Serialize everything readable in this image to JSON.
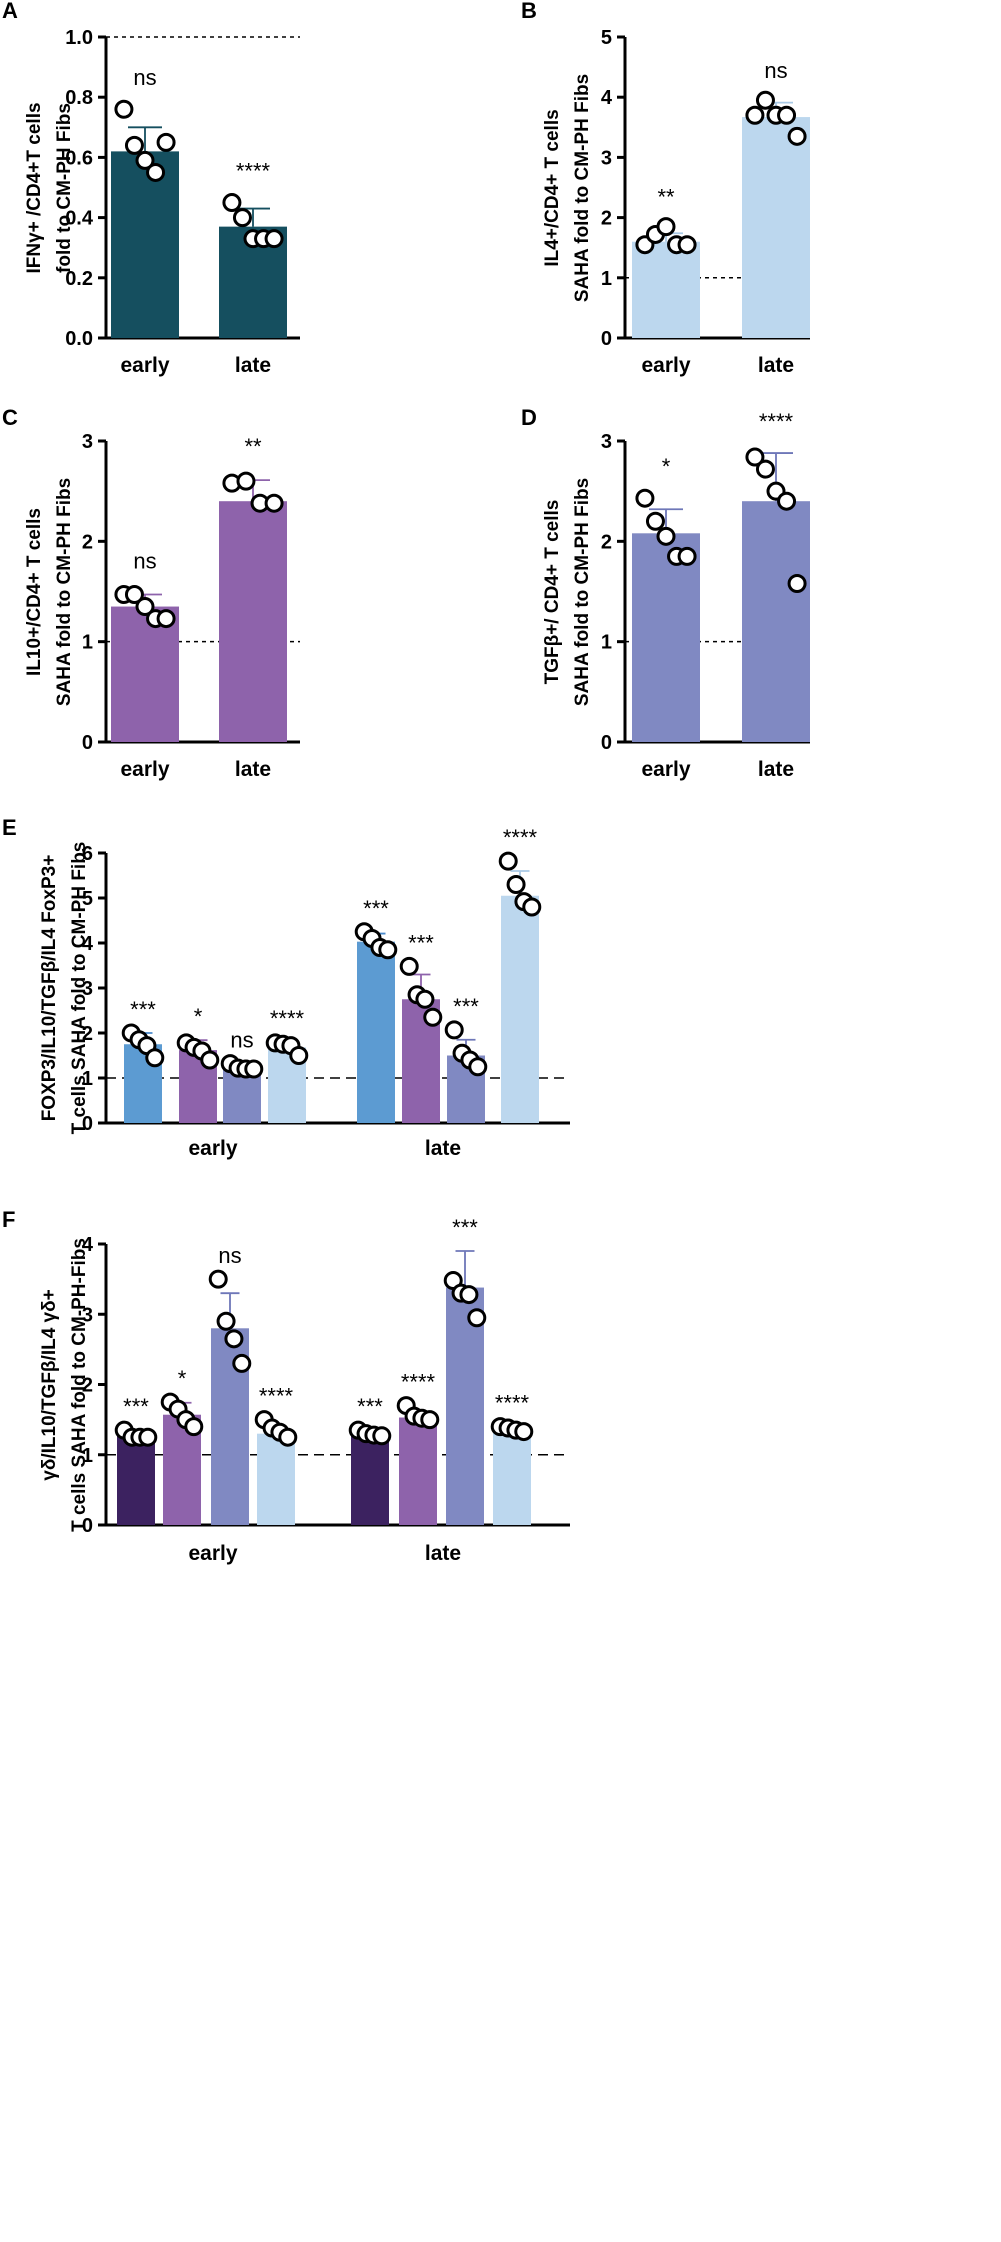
{
  "figure": {
    "colors": {
      "teal": "#154f5f",
      "light_blue": "#bcd7ee",
      "purple": "#8e63ab",
      "periwinkle": "#8089c2",
      "mid_blue": "#5c9bd2",
      "dark_purple": "#3c2260",
      "axis": "#000000",
      "err_teal": "#154f5f",
      "err_light": "#a9c9e6",
      "err_purple": "#8e63ab",
      "err_peri": "#6e77b8",
      "err_mid": "#4a8acb",
      "err_dark": "#3c2260"
    }
  },
  "chart_data": [
    {
      "panel": "A",
      "type": "bar",
      "categories": [
        "early",
        "late"
      ],
      "ylabel_lines": [
        "IFNγ+ /CD4+T cells",
        "fold to CM-PH Fibs"
      ],
      "ylim": [
        0,
        1.0
      ],
      "yticks": [
        "0.0",
        "0.2",
        "0.4",
        "0.6",
        "0.8",
        "1.0"
      ],
      "ref_line": 1.0,
      "bars": [
        {
          "category": "early",
          "value": 0.62,
          "err": 0.08,
          "sig": "ns",
          "color": "teal",
          "points": [
            0.76,
            0.64,
            0.59,
            0.55,
            0.65
          ]
        },
        {
          "category": "late",
          "value": 0.37,
          "err": 0.06,
          "sig": "****",
          "color": "teal",
          "points": [
            0.45,
            0.4,
            0.33,
            0.33,
            0.33
          ]
        }
      ]
    },
    {
      "panel": "B",
      "type": "bar",
      "categories": [
        "early",
        "late"
      ],
      "ylabel_lines": [
        "IL4+/CD4+ T cells",
        "SAHA fold to CM-PH Fibs"
      ],
      "ylim": [
        0,
        5
      ],
      "yticks": [
        "0",
        "1",
        "2",
        "3",
        "4",
        "5"
      ],
      "ref_line": 1,
      "bars": [
        {
          "category": "early",
          "value": 1.6,
          "err": 0.14,
          "sig": "**",
          "color": "light_blue",
          "points": [
            1.55,
            1.72,
            1.85,
            1.55,
            1.55
          ]
        },
        {
          "category": "late",
          "value": 3.67,
          "err": 0.24,
          "sig": "ns",
          "color": "light_blue",
          "points": [
            3.7,
            3.95,
            3.7,
            3.7,
            3.35
          ]
        }
      ]
    },
    {
      "panel": "C",
      "type": "bar",
      "categories": [
        "early",
        "late"
      ],
      "ylabel_lines": [
        "IL10+/CD4+ T cells",
        "SAHA fold to CM-PH Fibs"
      ],
      "ylim": [
        0,
        3
      ],
      "yticks": [
        "0",
        "1",
        "2",
        "3"
      ],
      "ref_line": 1,
      "bars": [
        {
          "category": "early",
          "value": 1.35,
          "err": 0.12,
          "sig": "ns",
          "color": "purple",
          "points": [
            1.47,
            1.47,
            1.35,
            1.23,
            1.23
          ]
        },
        {
          "category": "late",
          "value": 2.4,
          "err": 0.21,
          "sig": "**",
          "color": "purple",
          "points": [
            2.58,
            2.6,
            2.38,
            2.38
          ]
        }
      ]
    },
    {
      "panel": "D",
      "type": "bar",
      "categories": [
        "early",
        "late"
      ],
      "ylabel_lines": [
        "TGFβ+/ CD4+ T cells",
        "SAHA fold to CM-PH Fibs"
      ],
      "ylim": [
        0,
        3
      ],
      "yticks": [
        "0",
        "1",
        "2",
        "3"
      ],
      "ref_line": 1,
      "bars": [
        {
          "category": "early",
          "value": 2.08,
          "err": 0.24,
          "sig": "*",
          "color": "periwinkle",
          "points": [
            2.43,
            2.2,
            2.05,
            1.85,
            1.85
          ]
        },
        {
          "category": "late",
          "value": 2.4,
          "err": 0.48,
          "sig": "****",
          "color": "periwinkle",
          "points": [
            2.84,
            2.72,
            2.5,
            2.4,
            1.58
          ]
        }
      ]
    },
    {
      "panel": "E",
      "type": "grouped_bar",
      "categories": [
        "early",
        "late"
      ],
      "ylabel_lines": [
        "FOXP3/IL10/TGFβ/IL4 FoxP3+",
        "T cells  SAHA fold to CM-PH Fibs"
      ],
      "ylim": [
        0,
        6
      ],
      "yticks": [
        "0",
        "1",
        "2",
        "3",
        "4",
        "5",
        "6"
      ],
      "ref_line": 1,
      "groups": [
        {
          "category": "early",
          "bars": [
            {
              "value": 1.75,
              "err": 0.25,
              "sig": "***",
              "color": "mid_blue",
              "points": [
                2.0,
                1.85,
                1.72,
                1.45
              ]
            },
            {
              "value": 1.62,
              "err": 0.22,
              "sig": "*",
              "color": "purple",
              "points": [
                1.78,
                1.68,
                1.6,
                1.4
              ]
            },
            {
              "value": 1.22,
              "err": 0.08,
              "sig": "ns",
              "color": "periwinkle",
              "points": [
                1.32,
                1.22,
                1.2,
                1.2
              ]
            },
            {
              "value": 1.68,
              "err": 0.12,
              "sig": "****",
              "color": "light_blue",
              "points": [
                1.78,
                1.75,
                1.72,
                1.5
              ]
            }
          ]
        },
        {
          "category": "late",
          "bars": [
            {
              "value": 4.03,
              "err": 0.18,
              "sig": "***",
              "color": "mid_blue",
              "points": [
                4.25,
                4.1,
                3.9,
                3.85
              ]
            },
            {
              "value": 2.75,
              "err": 0.55,
              "sig": "***",
              "color": "purple",
              "points": [
                3.48,
                2.85,
                2.75,
                2.35
              ]
            },
            {
              "value": 1.5,
              "err": 0.35,
              "sig": "***",
              "color": "periwinkle",
              "points": [
                2.07,
                1.55,
                1.4,
                1.25
              ]
            },
            {
              "value": 5.05,
              "err": 0.55,
              "sig": "****",
              "color": "light_blue",
              "points": [
                5.82,
                5.3,
                4.92,
                4.8
              ]
            }
          ]
        }
      ]
    },
    {
      "panel": "F",
      "type": "grouped_bar",
      "categories": [
        "early",
        "late"
      ],
      "ylabel_lines": [
        "γδ/IL10/TGFβ/IL4 γδ+",
        "T cells SAHA fold to CM-PH-Fibs"
      ],
      "ylim": [
        0,
        4
      ],
      "yticks": [
        "0",
        "1",
        "2",
        "3",
        "4"
      ],
      "ref_line": 1,
      "groups": [
        {
          "category": "early",
          "bars": [
            {
              "value": 1.27,
              "err": 0.05,
              "sig": "***",
              "color": "dark_purple",
              "points": [
                1.35,
                1.25,
                1.25,
                1.25
              ]
            },
            {
              "value": 1.57,
              "err": 0.17,
              "sig": "*",
              "color": "purple",
              "points": [
                1.75,
                1.65,
                1.5,
                1.4
              ]
            },
            {
              "value": 2.8,
              "err": 0.5,
              "sig": "ns",
              "color": "periwinkle",
              "points": [
                3.5,
                2.9,
                2.65,
                2.3
              ]
            },
            {
              "value": 1.3,
              "err": 0.1,
              "sig": "****",
              "color": "light_blue",
              "points": [
                1.5,
                1.38,
                1.32,
                1.25
              ]
            }
          ]
        },
        {
          "category": "late",
          "bars": [
            {
              "value": 1.29,
              "err": 0.05,
              "sig": "***",
              "color": "dark_purple",
              "points": [
                1.35,
                1.3,
                1.28,
                1.27
              ]
            },
            {
              "value": 1.53,
              "err": 0.07,
              "sig": "****",
              "color": "purple",
              "points": [
                1.7,
                1.55,
                1.52,
                1.5
              ]
            },
            {
              "value": 3.38,
              "err": 0.52,
              "sig": "***",
              "color": "periwinkle",
              "points": [
                3.48,
                3.3,
                3.28,
                2.95
              ]
            },
            {
              "value": 1.35,
              "err": 0.05,
              "sig": "****",
              "color": "light_blue",
              "points": [
                1.4,
                1.38,
                1.35,
                1.33
              ]
            }
          ]
        }
      ]
    }
  ]
}
